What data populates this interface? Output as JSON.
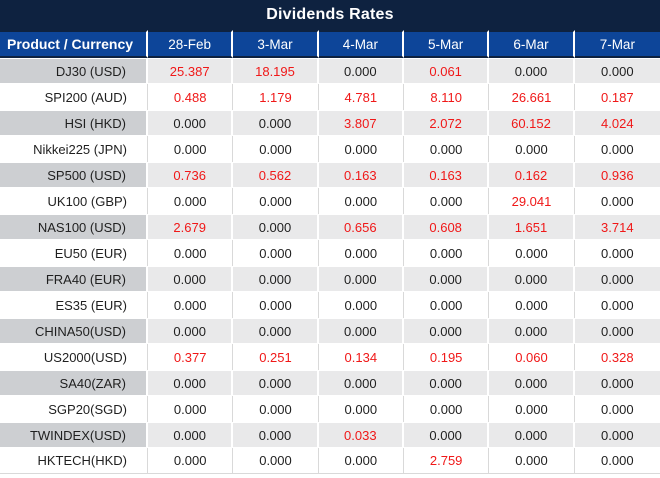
{
  "title": "Dividends Rates",
  "colors": {
    "title_bar_bg": "#0e2240",
    "header_bg": "#0d4599",
    "header_text": "#ffffff",
    "stripe_product_bg": "#cdcfd2",
    "stripe_value_bg": "#e9e9ea",
    "row_white_bg": "#ffffff",
    "gridline": "#d9d9d9",
    "text": "#1f1f1f",
    "positive_value": "#f01818"
  },
  "table": {
    "product_header": "Product / Currency",
    "date_headers": [
      "28-Feb",
      "3-Mar",
      "4-Mar",
      "5-Mar",
      "6-Mar",
      "7-Mar"
    ],
    "rows": [
      {
        "product": "DJ30 (USD)",
        "values": [
          "25.387",
          "18.195",
          "0.000",
          "0.061",
          "0.000",
          "0.000"
        ]
      },
      {
        "product": "SPI200 (AUD)",
        "values": [
          "0.488",
          "1.179",
          "4.781",
          "8.110",
          "26.661",
          "0.187"
        ]
      },
      {
        "product": "HSI (HKD)",
        "values": [
          "0.000",
          "0.000",
          "3.807",
          "2.072",
          "60.152",
          "4.024"
        ]
      },
      {
        "product": "Nikkei225 (JPN)",
        "values": [
          "0.000",
          "0.000",
          "0.000",
          "0.000",
          "0.000",
          "0.000"
        ]
      },
      {
        "product": "SP500 (USD)",
        "values": [
          "0.736",
          "0.562",
          "0.163",
          "0.163",
          "0.162",
          "0.936"
        ]
      },
      {
        "product": "UK100 (GBP)",
        "values": [
          "0.000",
          "0.000",
          "0.000",
          "0.000",
          "29.041",
          "0.000"
        ]
      },
      {
        "product": "NAS100 (USD)",
        "values": [
          "2.679",
          "0.000",
          "0.656",
          "0.608",
          "1.651",
          "3.714"
        ]
      },
      {
        "product": "EU50 (EUR)",
        "values": [
          "0.000",
          "0.000",
          "0.000",
          "0.000",
          "0.000",
          "0.000"
        ]
      },
      {
        "product": "FRA40 (EUR)",
        "values": [
          "0.000",
          "0.000",
          "0.000",
          "0.000",
          "0.000",
          "0.000"
        ]
      },
      {
        "product": "ES35 (EUR)",
        "values": [
          "0.000",
          "0.000",
          "0.000",
          "0.000",
          "0.000",
          "0.000"
        ]
      },
      {
        "product": "CHINA50(USD)",
        "values": [
          "0.000",
          "0.000",
          "0.000",
          "0.000",
          "0.000",
          "0.000"
        ]
      },
      {
        "product": "US2000(USD)",
        "values": [
          "0.377",
          "0.251",
          "0.134",
          "0.195",
          "0.060",
          "0.328"
        ]
      },
      {
        "product": "SA40(ZAR)",
        "values": [
          "0.000",
          "0.000",
          "0.000",
          "0.000",
          "0.000",
          "0.000"
        ]
      },
      {
        "product": "SGP20(SGD)",
        "values": [
          "0.000",
          "0.000",
          "0.000",
          "0.000",
          "0.000",
          "0.000"
        ]
      },
      {
        "product": "TWINDEX(USD)",
        "values": [
          "0.000",
          "0.000",
          "0.033",
          "0.000",
          "0.000",
          "0.000"
        ]
      },
      {
        "product": "HKTECH(HKD)",
        "values": [
          "0.000",
          "0.000",
          "0.000",
          "2.759",
          "0.000",
          "0.000"
        ]
      }
    ]
  },
  "chart_data": {
    "type": "table",
    "title": "Dividends Rates",
    "columns": [
      "Product / Currency",
      "28-Feb",
      "3-Mar",
      "4-Mar",
      "5-Mar",
      "6-Mar",
      "7-Mar"
    ],
    "rows": [
      [
        "DJ30 (USD)",
        25.387,
        18.195,
        0.0,
        0.061,
        0.0,
        0.0
      ],
      [
        "SPI200 (AUD)",
        0.488,
        1.179,
        4.781,
        8.11,
        26.661,
        0.187
      ],
      [
        "HSI (HKD)",
        0.0,
        0.0,
        3.807,
        2.072,
        60.152,
        4.024
      ],
      [
        "Nikkei225 (JPN)",
        0.0,
        0.0,
        0.0,
        0.0,
        0.0,
        0.0
      ],
      [
        "SP500 (USD)",
        0.736,
        0.562,
        0.163,
        0.163,
        0.162,
        0.936
      ],
      [
        "UK100 (GBP)",
        0.0,
        0.0,
        0.0,
        0.0,
        29.041,
        0.0
      ],
      [
        "NAS100 (USD)",
        2.679,
        0.0,
        0.656,
        0.608,
        1.651,
        3.714
      ],
      [
        "EU50 (EUR)",
        0.0,
        0.0,
        0.0,
        0.0,
        0.0,
        0.0
      ],
      [
        "FRA40 (EUR)",
        0.0,
        0.0,
        0.0,
        0.0,
        0.0,
        0.0
      ],
      [
        "ES35 (EUR)",
        0.0,
        0.0,
        0.0,
        0.0,
        0.0,
        0.0
      ],
      [
        "CHINA50(USD)",
        0.0,
        0.0,
        0.0,
        0.0,
        0.0,
        0.0
      ],
      [
        "US2000(USD)",
        0.377,
        0.251,
        0.134,
        0.195,
        0.06,
        0.328
      ],
      [
        "SA40(ZAR)",
        0.0,
        0.0,
        0.0,
        0.0,
        0.0,
        0.0
      ],
      [
        "SGP20(SGD)",
        0.0,
        0.0,
        0.0,
        0.0,
        0.0,
        0.0
      ],
      [
        "TWINDEX(USD)",
        0.0,
        0.0,
        0.033,
        0.0,
        0.0,
        0.0
      ],
      [
        "HKTECH(HKD)",
        0.0,
        0.0,
        0.0,
        2.759,
        0.0,
        0.0
      ]
    ],
    "notes": "Non-zero values are rendered in red; zero values in black. Rows alternate gray/white striping starting with gray."
  }
}
